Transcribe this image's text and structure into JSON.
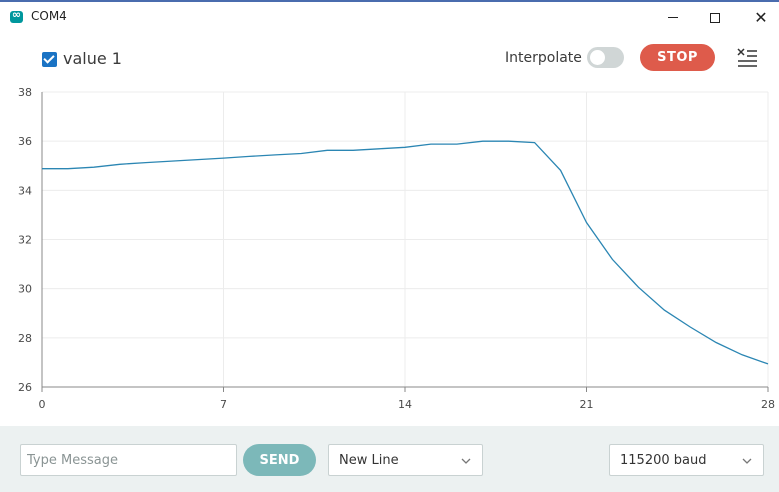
{
  "window": {
    "title": "COM4"
  },
  "toolbar": {
    "series_label": "value 1",
    "interpolate_label": "Interpolate",
    "interpolate_on": false,
    "stop_label": "STOP",
    "accent_stop": "#de5b4b",
    "checkbox_color": "#1a73c4"
  },
  "chart_data": {
    "type": "line",
    "title": "",
    "xlabel": "",
    "ylabel": "",
    "xlim": [
      0,
      28
    ],
    "ylim": [
      26,
      38
    ],
    "xticks": [
      0,
      7,
      14,
      21,
      28
    ],
    "yticks": [
      26,
      28,
      30,
      32,
      34,
      36,
      38
    ],
    "grid": true,
    "series": [
      {
        "name": "value 1",
        "color": "#2b86b3",
        "x": [
          0,
          1,
          2,
          3,
          4,
          5,
          6,
          7,
          8,
          9,
          10,
          11,
          12,
          13,
          14,
          15,
          16,
          17,
          18,
          19,
          20,
          21,
          22,
          23,
          24,
          25,
          26,
          27,
          28
        ],
        "y": [
          34.88,
          34.88,
          34.94,
          35.06,
          35.13,
          35.19,
          35.25,
          35.31,
          35.38,
          35.44,
          35.5,
          35.63,
          35.63,
          35.69,
          35.75,
          35.88,
          35.88,
          36.0,
          36.0,
          35.94,
          34.81,
          32.69,
          31.19,
          30.06,
          29.13,
          28.44,
          27.81,
          27.31,
          26.94
        ]
      }
    ]
  },
  "bottom": {
    "message_placeholder": "Type Message",
    "send_label": "SEND",
    "line_ending": "New Line",
    "baud_rate": "115200 baud"
  }
}
